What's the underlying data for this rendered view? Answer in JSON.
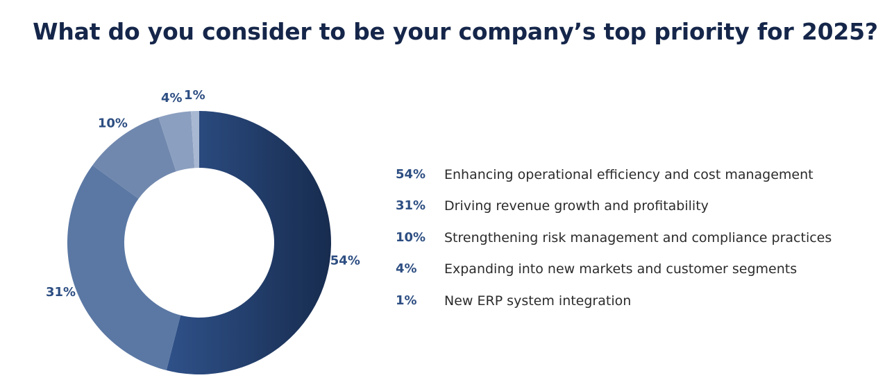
{
  "chart_data": {
    "type": "pie",
    "donut": true,
    "title": "What do you consider to be your company’s top priority for 2025?",
    "slices": [
      {
        "label": "Enhancing operational efficiency and cost management",
        "value": 54,
        "display": "54%",
        "color": "#2a4b7b"
      },
      {
        "label": "Driving revenue growth and profitability",
        "value": 31,
        "display": "31%",
        "color": "#5b78a4"
      },
      {
        "label": "Strengthening risk management and compliance practices",
        "value": 10,
        "display": "10%",
        "color": "#7188ae"
      },
      {
        "label": "Expanding into new markets and customer segments",
        "value": 4,
        "display": "4%",
        "color": "#8b9fc0"
      },
      {
        "label": "New ERP system integration",
        "value": 1,
        "display": "1%",
        "color": "#a9b8d2"
      }
    ],
    "legend_position": "right"
  }
}
